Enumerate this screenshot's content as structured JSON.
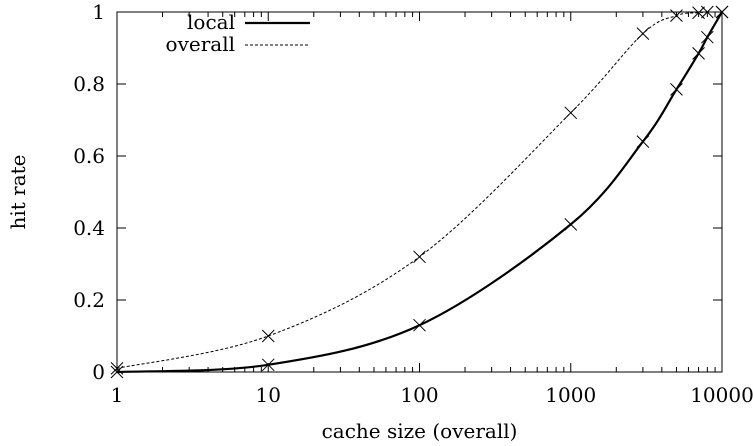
{
  "chart_data": {
    "type": "line",
    "xscale": "log",
    "xlim": [
      1,
      10000
    ],
    "ylim": [
      0,
      1
    ],
    "xlabel": "cache size (overall)",
    "ylabel": "hit rate",
    "x_ticks": [
      1,
      10,
      100,
      1000,
      10000
    ],
    "x_tick_labels": [
      "1",
      "10",
      "100",
      "1000",
      "10000"
    ],
    "y_ticks": [
      0,
      0.2,
      0.4,
      0.6,
      0.8,
      1
    ],
    "y_tick_labels": [
      "0",
      "0.2",
      "0.4",
      "0.6",
      "0.8",
      "1"
    ],
    "grid": false,
    "legend_position": "top-left",
    "series": [
      {
        "name": "local",
        "style": "solid",
        "color": "#000000",
        "x": [
          1,
          10,
          100,
          1000,
          3000,
          5000,
          7000,
          8000,
          10000
        ],
        "y": [
          0.0,
          0.02,
          0.13,
          0.41,
          0.64,
          0.785,
          0.885,
          0.93,
          1.0
        ]
      },
      {
        "name": "overall",
        "style": "dashed",
        "color": "#000000",
        "x": [
          1,
          10,
          100,
          1000,
          3000,
          5000,
          7000,
          8000,
          10000
        ],
        "y": [
          0.01,
          0.1,
          0.32,
          0.72,
          0.94,
          0.99,
          0.998,
          1.0,
          1.0
        ]
      }
    ]
  }
}
